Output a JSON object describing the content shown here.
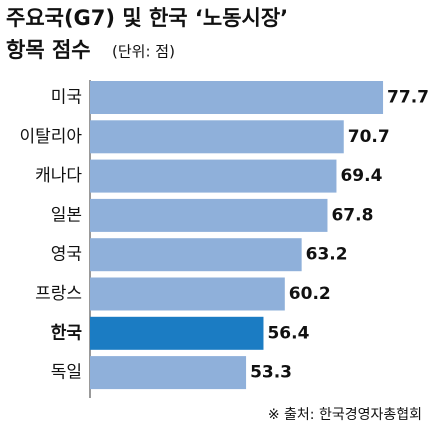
{
  "chart_data": {
    "type": "hbar",
    "title": [
      "주요국(G7) 및 한국 ‘노동시장’",
      "항목 점수"
    ],
    "subtitle": "(단위: 점)",
    "source": "※ 출처: 한국경영자총협회",
    "categories": [
      "미국",
      "이탈리아",
      "캐나다",
      "일본",
      "영국",
      "프랑스",
      "한국",
      "독일"
    ],
    "values": [
      77.7,
      70.7,
      69.4,
      67.8,
      63.2,
      60.2,
      56.4,
      53.3
    ],
    "colors": [
      "#8fb0da",
      "#8fb0da",
      "#8fb0da",
      "#8fb0da",
      "#8fb0da",
      "#8fb0da",
      "#1b7cc3",
      "#8fb0da"
    ],
    "xlim": [
      25.5,
      82.5
    ]
  }
}
